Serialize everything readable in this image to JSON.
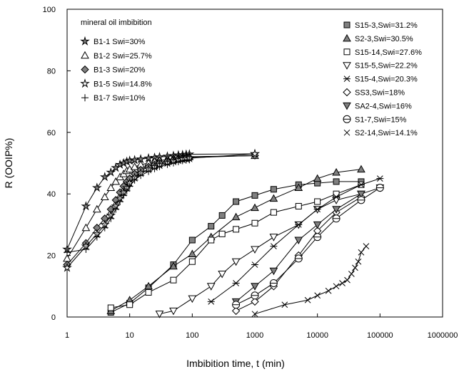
{
  "chart_data": {
    "type": "scatter",
    "xscale": "log",
    "xlim": [
      1,
      1000000
    ],
    "ylim": [
      0,
      100
    ],
    "xticks": [
      "1",
      "10",
      "100",
      "1000",
      "10000",
      "100000",
      "1000000"
    ],
    "yticks": [
      "0",
      "20",
      "40",
      "60",
      "80",
      "100"
    ],
    "xlabel": "Imbibition time,  t (min)",
    "ylabel": "R  (OOIP%)",
    "legend_left_title": "mineral oil imbibition",
    "grid": false,
    "line_color": "#000000",
    "fill_color": "#808080",
    "series": [
      {
        "name": "B1-1 Swi=30%",
        "marker": "star-filled",
        "legend": "left",
        "x": [
          1,
          2,
          3,
          4,
          5,
          6,
          7,
          8,
          9,
          10,
          12,
          15,
          20,
          25,
          30,
          40,
          50,
          60,
          70,
          80,
          90,
          1000
        ],
        "y": [
          22,
          36,
          42,
          45.5,
          47,
          48.5,
          49.5,
          50,
          50.5,
          50.8,
          51,
          51.3,
          51.6,
          51.8,
          52,
          52.2,
          52.4,
          52.6,
          52.7,
          52.8,
          52.9,
          53
        ]
      },
      {
        "name": "B1-2 Swi=25.7%",
        "marker": "triangle-up-open",
        "legend": "left",
        "x": [
          1,
          2,
          3,
          4,
          5,
          6,
          7,
          8,
          9,
          10,
          12,
          15,
          20,
          25,
          30,
          40,
          50,
          60,
          70,
          80,
          90,
          1000
        ],
        "y": [
          19,
          29,
          35,
          39,
          42,
          44,
          45.5,
          46.5,
          47.5,
          48,
          48.8,
          49.5,
          50,
          50.5,
          50.8,
          51.2,
          51.5,
          51.7,
          51.9,
          52,
          52.1,
          52.4
        ]
      },
      {
        "name": "B1-3 Swi=20%",
        "marker": "diamond-filled",
        "legend": "left",
        "x": [
          1,
          2,
          3,
          4,
          5,
          6,
          7,
          8,
          9,
          10,
          12,
          15,
          20,
          25,
          30,
          40,
          50,
          60,
          70,
          80,
          90,
          1000
        ],
        "y": [
          17,
          24,
          29,
          32,
          35,
          38,
          40.5,
          42.5,
          44,
          45,
          46.5,
          47.8,
          48.8,
          49.5,
          50,
          50.6,
          51,
          51.3,
          51.5,
          51.7,
          51.8,
          52.5
        ]
      },
      {
        "name": "B1-5 Swi=14.8%",
        "marker": "star-open",
        "legend": "left",
        "x": [
          1,
          2,
          3,
          4,
          5,
          6,
          7,
          8,
          9,
          10,
          12,
          15,
          20,
          25,
          30,
          40,
          50,
          60,
          70,
          80,
          90,
          1000
        ],
        "y": [
          16,
          23,
          27,
          30,
          33,
          36,
          38.5,
          40.5,
          42,
          43.5,
          45.3,
          46.8,
          48,
          48.8,
          49.4,
          50.1,
          50.6,
          51,
          51.3,
          51.5,
          51.6,
          53
        ]
      },
      {
        "name": "B1-7 Swi=10%",
        "marker": "plus",
        "legend": "left",
        "x": [
          1,
          2,
          3,
          4,
          5,
          6,
          7,
          8,
          9,
          10,
          12,
          15,
          20,
          25,
          30,
          40,
          50,
          60,
          70,
          80,
          90
        ],
        "y": [
          21,
          22,
          26,
          29,
          32,
          35,
          37.5,
          39.5,
          41,
          42.5,
          44.5,
          46,
          47.3,
          48.2,
          48.9,
          49.6,
          50.1,
          50.5,
          50.8,
          51,
          51.1
        ]
      },
      {
        "name": "S15-3,Swi=31.2%",
        "marker": "square-filled",
        "legend": "right",
        "x": [
          5,
          10,
          20,
          50,
          100,
          200,
          300,
          500,
          1000,
          2000,
          5000,
          10000,
          20000,
          50000
        ],
        "y": [
          1.5,
          4.5,
          9.5,
          17,
          25,
          29.5,
          33,
          37.5,
          39.5,
          41.5,
          43,
          43.5,
          44,
          44
        ]
      },
      {
        "name": "S2-3,Swi=30.5%",
        "marker": "triangle-up-filled",
        "legend": "right",
        "x": [
          5,
          10,
          20,
          50,
          100,
          200,
          500,
          1000,
          2000,
          5000,
          10000,
          20000,
          50000
        ],
        "y": [
          2,
          5.5,
          10,
          16.5,
          20.5,
          26,
          32.5,
          35.5,
          38.5,
          42,
          45,
          47,
          48
        ]
      },
      {
        "name": "S15-14,Swi=27.6%",
        "marker": "square-open",
        "legend": "right",
        "x": [
          5,
          10,
          20,
          50,
          100,
          200,
          300,
          500,
          1000,
          2000,
          5000,
          10000,
          20000,
          50000
        ],
        "y": [
          3,
          4,
          8,
          12,
          18,
          25,
          27,
          28.5,
          30.5,
          34,
          36,
          37.5,
          40,
          43
        ]
      },
      {
        "name": "S15-5,Swi=22.2%",
        "marker": "triangle-down-open",
        "legend": "right",
        "x": [
          30,
          50,
          100,
          200,
          300,
          500,
          1000,
          2000,
          5000,
          10000,
          20000,
          50000
        ],
        "y": [
          1,
          2,
          6,
          10,
          14,
          18,
          22,
          26,
          30,
          35,
          38,
          40
        ]
      },
      {
        "name": "S15-4,Swi=20.3%",
        "marker": "asterisk",
        "legend": "right",
        "x": [
          200,
          500,
          1000,
          2000,
          5000,
          10000,
          20000,
          50000,
          100000
        ],
        "y": [
          5,
          11,
          17,
          23,
          30,
          35,
          39,
          43,
          45
        ]
      },
      {
        "name": "SS3,Swi=18%",
        "marker": "diamond-open",
        "legend": "right",
        "x": [
          500,
          1000,
          2000,
          5000,
          10000,
          20000,
          50000
        ],
        "y": [
          2,
          5,
          10,
          20,
          28,
          34,
          39
        ]
      },
      {
        "name": "SA2-4,Swi=16%",
        "marker": "triangle-down-filled",
        "legend": "right",
        "x": [
          500,
          1000,
          2000,
          5000,
          10000,
          20000,
          50000,
          100000
        ],
        "y": [
          5,
          10,
          15,
          25,
          30,
          35,
          40,
          42
        ]
      },
      {
        "name": "S1-7,Swi=15%",
        "marker": "circle-open",
        "legend": "right",
        "x": [
          500,
          1000,
          2000,
          5000,
          10000,
          20000,
          50000,
          100000
        ],
        "y": [
          4,
          7,
          11,
          19,
          26,
          32,
          38,
          42
        ]
      },
      {
        "name": "S2-14,Swi=14.1%",
        "marker": "x",
        "legend": "right",
        "x": [
          1000,
          3000,
          7000,
          10000,
          15000,
          20000,
          25000,
          30000,
          35000,
          40000,
          45000,
          50000,
          60000
        ],
        "y": [
          1,
          4,
          5.5,
          7,
          8.5,
          10,
          11,
          12,
          14,
          16,
          18,
          21,
          23
        ]
      }
    ]
  }
}
